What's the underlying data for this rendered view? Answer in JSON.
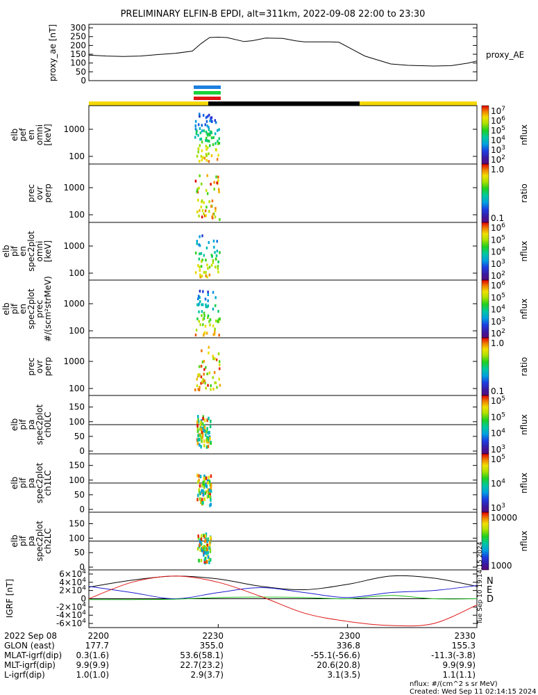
{
  "page": {
    "title": "PRELIMINARY ELFIN-B EPDI, alt=311km, 2022-09-08 22:00 to 23:30",
    "footer_units": "nflux: #/(cm^2 s sr MeV)",
    "footer_created": "Created: Wed Sep 11 02:14:15 2024",
    "side_stamp": "Tue Sep 10 19:14:15 2024"
  },
  "colors": {
    "sector_yellow": "#f5d800",
    "sector_black": "#000000",
    "indicator_blue": "#1e7fe0",
    "indicator_green": "#19d23c",
    "indicator_red": "#e01515",
    "igrf_n": "#1a1ad0",
    "igrf_e": "#17b817",
    "igrf_d": "#e01515",
    "igrf_total": "#000000"
  },
  "info_table": {
    "rows": [
      {
        "label": "2022 Sep 08",
        "values": [
          "2200",
          "2230",
          "2300",
          "2330"
        ]
      },
      {
        "label": "GLON (east)",
        "values": [
          "177.7",
          "355.0",
          "336.8",
          "155.3"
        ]
      },
      {
        "label": "MLAT-igrf(dip)",
        "values": [
          "0.3(1.6)",
          "53.6(58.1)",
          "-55.1(-56.6)",
          "-11.3(-3.8)"
        ]
      },
      {
        "label": "MLT-igrf(dip)",
        "values": [
          "9.9(9.9)",
          "22.7(23.2)",
          "20.6(20.8)",
          "9.9(9.9)"
        ]
      },
      {
        "label": "L-igrf(dip)",
        "values": [
          "1.0(1.0)",
          "2.9(3.7)",
          "3.1(3.5)",
          "1.1(1.1)"
        ]
      }
    ]
  },
  "panels": [
    {
      "id": "elb-pef-en",
      "ylabel": [
        "elb",
        "pef",
        "en",
        "omni",
        "[keV]"
      ],
      "yscale": "log",
      "yticks": [
        "1000",
        "100"
      ],
      "cbar": "rainbow",
      "cbar_ticks": [
        "10^7",
        "10^6",
        "10^5",
        "10^4",
        "10^3",
        "10^2"
      ],
      "cbar_label": "nflux"
    },
    {
      "id": "prec-ovr-perp-1",
      "ylabel": [
        "prec",
        "ovr",
        "perp"
      ],
      "yscale": "log",
      "yticks": [
        "1000",
        "100"
      ],
      "cbar": "rainbow",
      "cbar_ticks": [
        "1.0",
        "0.1"
      ],
      "cbar_label": "ratio"
    },
    {
      "id": "elb-pif-en-omni",
      "ylabel": [
        "elb",
        "pif",
        "en",
        "spec2plot",
        "omni",
        "[keV]"
      ],
      "yscale": "log",
      "yticks": [
        "1000",
        "100"
      ],
      "cbar": "rainbow",
      "cbar_ticks": [
        "10^6",
        "10^5",
        "10^4",
        "10^3",
        "10^2"
      ],
      "cbar_label": "nflux"
    },
    {
      "id": "elb-pif-en-prec",
      "ylabel": [
        "elb",
        "pif",
        "en",
        "spec2plot",
        "prec",
        "#/(scm²strMeV)"
      ],
      "yscale": "log",
      "yticks": [
        "1000",
        "100"
      ],
      "cbar": "rainbow",
      "cbar_ticks": [
        "10^6",
        "10^5",
        "10^4",
        "10^3",
        "10^2"
      ],
      "cbar_label": "nflux"
    },
    {
      "id": "prec-ovr-perp-2",
      "ylabel": [
        "prec",
        "ovr",
        "perp"
      ],
      "yscale": "log",
      "yticks": [
        "1000",
        "100"
      ],
      "cbar": "rainbow",
      "cbar_ticks": [
        "1.0",
        "0.1"
      ],
      "cbar_label": "ratio"
    },
    {
      "id": "elb-pif-pa-ch0LC",
      "ylabel": [
        "elb",
        "pif",
        "pa",
        "spec2plot",
        "ch0LC"
      ],
      "yscale": "linear",
      "yticks": [
        "150",
        "100",
        "50",
        "0"
      ],
      "cbar": "rainbow",
      "cbar_ticks": [
        "10^5",
        "10^5",
        "10^4",
        "10^3"
      ],
      "cbar_label": "nflux"
    },
    {
      "id": "elb-pif-pa-ch1LC",
      "ylabel": [
        "elb",
        "pif",
        "pa",
        "spec2plot",
        "ch1LC"
      ],
      "yscale": "linear",
      "yticks": [
        "150",
        "100",
        "50",
        "0"
      ],
      "cbar": "rainbow",
      "cbar_ticks": [
        "10^5",
        "10^4",
        "10^3"
      ],
      "cbar_label": "nflux"
    },
    {
      "id": "elb-pif-pa-ch2LC",
      "ylabel": [
        "elb",
        "pif",
        "pa",
        "spec2plot",
        "ch2LC"
      ],
      "yscale": "linear",
      "yticks": [
        "150",
        "100",
        "50",
        "0"
      ],
      "cbar": "rainbow",
      "cbar_ticks": [
        "10000",
        "1000"
      ],
      "cbar_label": "nflux"
    }
  ],
  "chart_data": [
    {
      "type": "line",
      "name": "proxy_ae",
      "ylabel": "proxy_ae [nT]",
      "legend": "proxy_AE",
      "ylim": [
        0,
        320
      ],
      "yticks": [
        0,
        50,
        100,
        150,
        200,
        250,
        300
      ],
      "xlim": [
        "22:00",
        "23:30"
      ],
      "x": [
        "22:00",
        "22:04",
        "22:08",
        "22:12",
        "22:16",
        "22:20",
        "22:24",
        "22:26",
        "22:28",
        "22:30",
        "22:32",
        "22:36",
        "22:38",
        "22:41",
        "22:45",
        "22:48",
        "22:50",
        "22:56",
        "22:58",
        "23:04",
        "23:10",
        "23:14",
        "23:20",
        "23:24",
        "23:28",
        "23:30"
      ],
      "y": [
        145,
        140,
        137,
        140,
        148,
        155,
        168,
        210,
        245,
        247,
        245,
        222,
        227,
        242,
        240,
        226,
        220,
        220,
        218,
        140,
        95,
        87,
        83,
        85,
        100,
        112
      ]
    },
    {
      "type": "line",
      "name": "IGRF",
      "ylabel": "IGRF [nT]",
      "ylim": [
        -70000,
        70000
      ],
      "yticks": [
        "6×10^4",
        "4×10^4",
        "2×10^4",
        "0",
        "-2×10^4",
        "-4×10^4",
        "-6×10^4"
      ],
      "xlim": [
        "22:00",
        "23:30"
      ],
      "legend": [
        "N",
        "E",
        "D"
      ],
      "series": [
        {
          "name": "total",
          "x": [
            "22:00",
            "22:10",
            "22:20",
            "22:30",
            "22:40",
            "22:50",
            "23:00",
            "23:10",
            "23:20",
            "23:30"
          ],
          "y": [
            28000,
            45000,
            55000,
            48000,
            30000,
            22000,
            35000,
            55000,
            50000,
            30000
          ]
        },
        {
          "name": "N",
          "x": [
            "22:00",
            "22:10",
            "22:20",
            "22:30",
            "22:40",
            "22:50",
            "23:00",
            "23:10",
            "23:20",
            "23:30"
          ],
          "y": [
            30000,
            15000,
            0,
            15000,
            27000,
            15000,
            3000,
            15000,
            20000,
            32000
          ]
        },
        {
          "name": "E",
          "x": [
            "22:00",
            "22:10",
            "22:20",
            "22:30",
            "22:40",
            "22:50",
            "23:00",
            "23:10",
            "23:20",
            "23:30"
          ],
          "y": [
            -2000,
            -2000,
            -1000,
            3000,
            4000,
            3000,
            0,
            8000,
            0,
            0
          ]
        },
        {
          "name": "D",
          "x": [
            "22:00",
            "22:10",
            "22:20",
            "22:30",
            "22:40",
            "22:50",
            "23:00",
            "23:10",
            "23:20",
            "23:30"
          ],
          "y": [
            0,
            40000,
            55000,
            40000,
            5000,
            -35000,
            -55000,
            -65000,
            -60000,
            -15000
          ]
        }
      ]
    }
  ]
}
